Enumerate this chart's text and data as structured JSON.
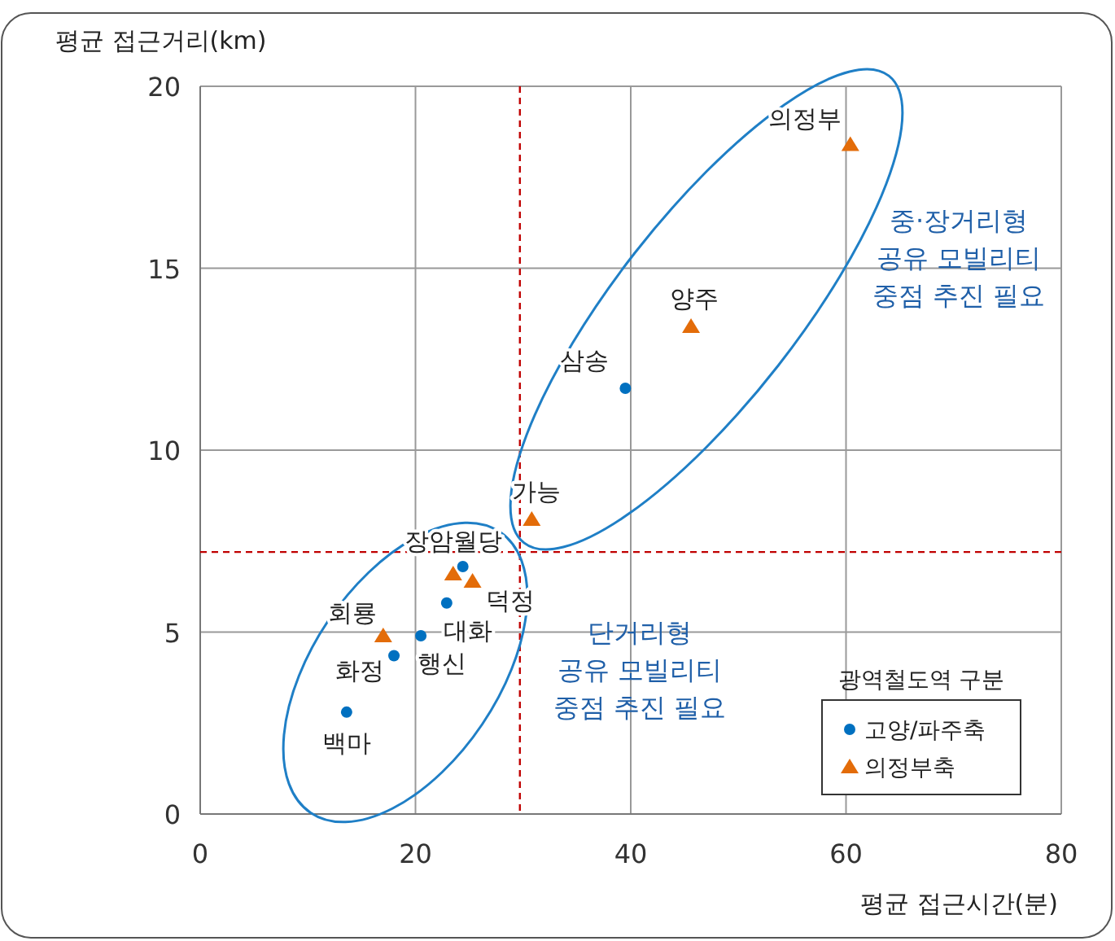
{
  "chart_data": {
    "type": "scatter",
    "xlabel": "평균 접근시간(분)",
    "ylabel": "평균 접근거리(km)",
    "legend_title": "광역철도역 구분",
    "xlim": [
      0,
      80
    ],
    "ylim": [
      0,
      20
    ],
    "xticks": [
      0,
      20,
      40,
      60,
      80
    ],
    "yticks": [
      0,
      5,
      10,
      15,
      20
    ],
    "grid": true,
    "legend": "bottom right",
    "series": [
      {
        "name": "고양/파주축",
        "color": "#0070c0",
        "marker": "circle",
        "x": [
          13.6,
          18.0,
          20.5,
          22.9,
          24.4,
          39.5
        ],
        "values": [
          2.8,
          4.35,
          4.9,
          5.8,
          6.8,
          11.7
        ]
      },
      {
        "name": "의정부축",
        "color": "#e36c09",
        "marker": "triangle",
        "x": [
          17.0,
          23.5,
          25.3,
          30.8,
          45.6,
          60.4
        ],
        "values": [
          4.9,
          6.6,
          6.4,
          8.1,
          13.4,
          18.4
        ]
      }
    ],
    "ref_lines": [
      {
        "axis": "x",
        "value": 29.7,
        "color": "#c00000",
        "line_style": "dashed"
      },
      {
        "axis": "y",
        "value": 7.2,
        "color": "#c00000",
        "line_style": "dashed"
      }
    ],
    "annotations": [
      {
        "text": "백마",
        "x": 13.6,
        "y": 2.8
      },
      {
        "text": "화정",
        "x": 18.0,
        "y": 4.35
      },
      {
        "text": "행신",
        "x": 20.5,
        "y": 4.9
      },
      {
        "text": "대화",
        "x": 22.9,
        "y": 5.8
      },
      {
        "text": "덕정",
        "x": 25.3,
        "y": 6.4
      },
      {
        "text": "회룡",
        "x": 17.0,
        "y": 4.9
      },
      {
        "text": "장암월당",
        "x": 23.5,
        "y": 6.6
      },
      {
        "text": "가능",
        "x": 30.8,
        "y": 8.1
      },
      {
        "text": "삼송",
        "x": 39.5,
        "y": 11.7
      },
      {
        "text": "양주",
        "x": 45.6,
        "y": 13.4
      },
      {
        "text": "의정부",
        "x": 60.4,
        "y": 18.4
      },
      "단거리형\n공유 모빌리티\n중점 추진 필요",
      "중·장거리형\n공유 모빌리티\n중점 추진 필요"
    ]
  }
}
